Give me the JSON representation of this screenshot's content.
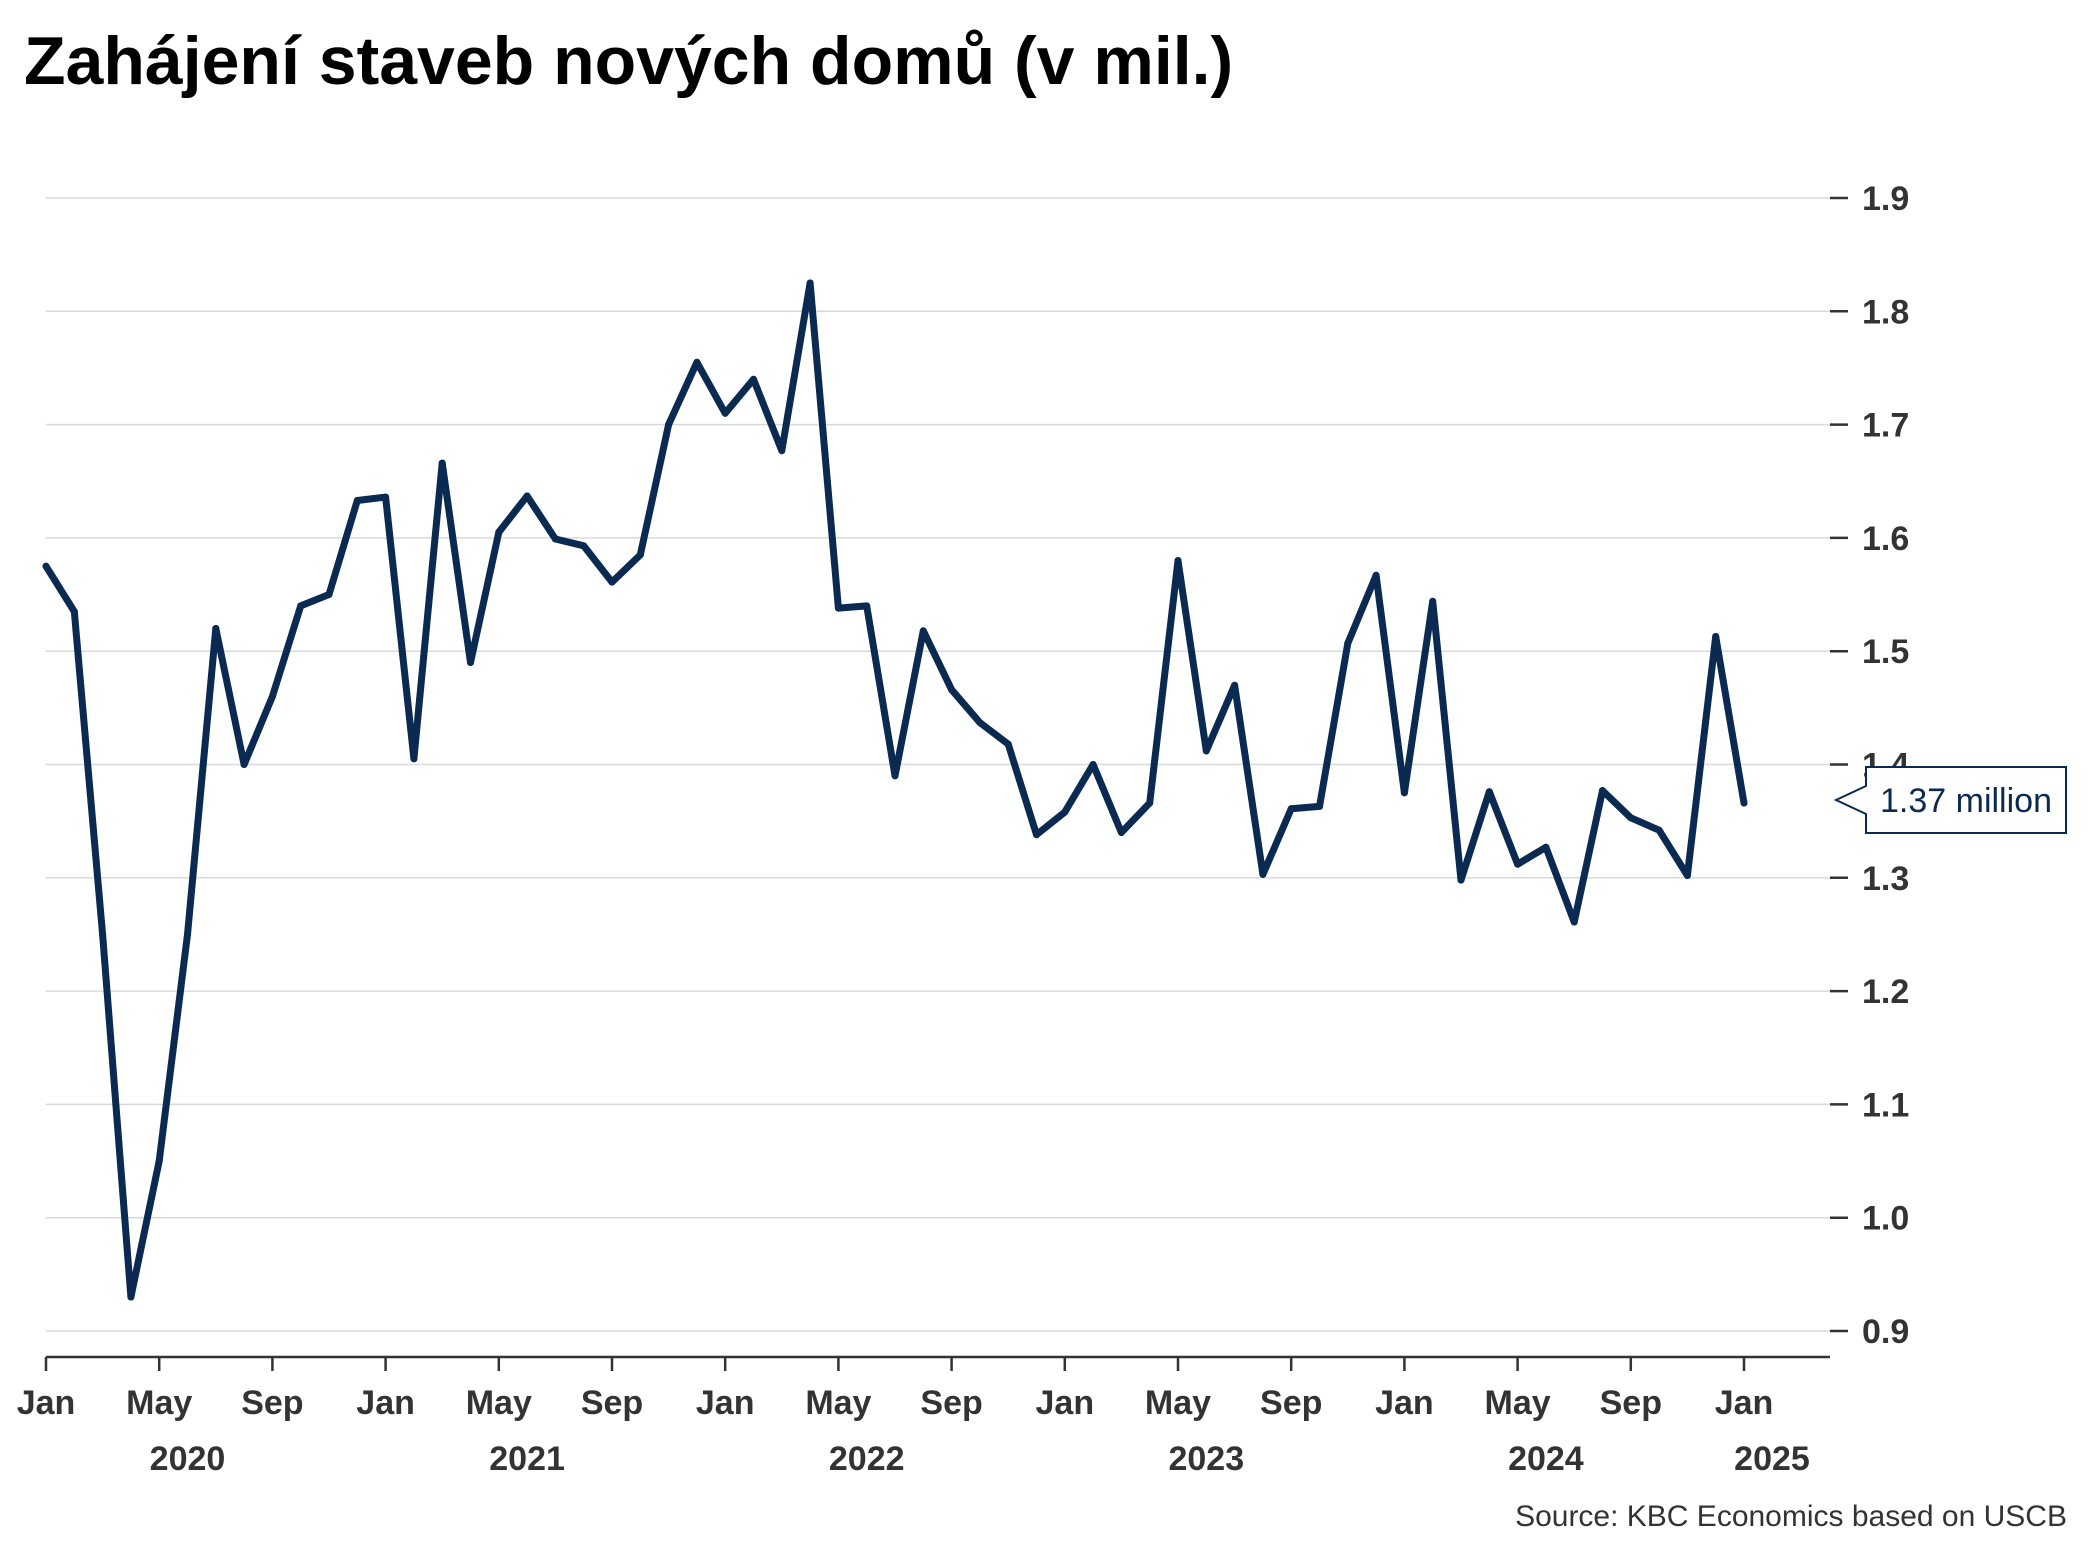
{
  "title": "Zahájení staveb nových domů (v mil.)",
  "source": "Source: KBC Economics based on USCB",
  "colors": {
    "line": "#0b2a52",
    "grid": "#d9d9d9",
    "axis": "#333333",
    "text": "#333333"
  },
  "chart_data": {
    "type": "line",
    "title": "Zahájení staveb nových domů (v mil.)",
    "xlabel": "",
    "ylabel": "",
    "ylim": [
      0.9,
      1.9
    ],
    "yticks": [
      "0.9",
      "1.0",
      "1.1",
      "1.2",
      "1.3",
      "1.4",
      "1.5",
      "1.6",
      "1.7",
      "1.8",
      "1.9"
    ],
    "grid": true,
    "legend": "none",
    "x_start": "2020-01",
    "x_month_labels": [
      "Jan",
      "May",
      "Sep",
      "Jan",
      "May",
      "Sep",
      "Jan",
      "May",
      "Sep",
      "Jan",
      "May",
      "Sep",
      "Jan",
      "May",
      "Sep",
      "Jan"
    ],
    "x_year_labels": [
      "2020",
      "2021",
      "2022",
      "2023",
      "2024",
      "2025"
    ],
    "series": [
      {
        "values": [
          1.575,
          1.535,
          1.25,
          0.93,
          1.05,
          1.25,
          1.52,
          1.4,
          1.46,
          1.54,
          1.55,
          1.633,
          1.636,
          1.405,
          1.666,
          1.49,
          1.605,
          1.637,
          1.599,
          1.593,
          1.561,
          1.585,
          1.7,
          1.755,
          1.71,
          1.74,
          1.677,
          1.825,
          1.538,
          1.54,
          1.39,
          1.518,
          1.466,
          1.437,
          1.418,
          1.338,
          1.358,
          1.4,
          1.34,
          1.366,
          1.58,
          1.412,
          1.47,
          1.303,
          1.361,
          1.363,
          1.507,
          1.567,
          1.375,
          1.544,
          1.298,
          1.376,
          1.312,
          1.327,
          1.261,
          1.377,
          1.353,
          1.342,
          1.302,
          1.513,
          1.366
        ]
      }
    ],
    "annotation": {
      "label": "1.37 million",
      "value": 1.366
    }
  }
}
